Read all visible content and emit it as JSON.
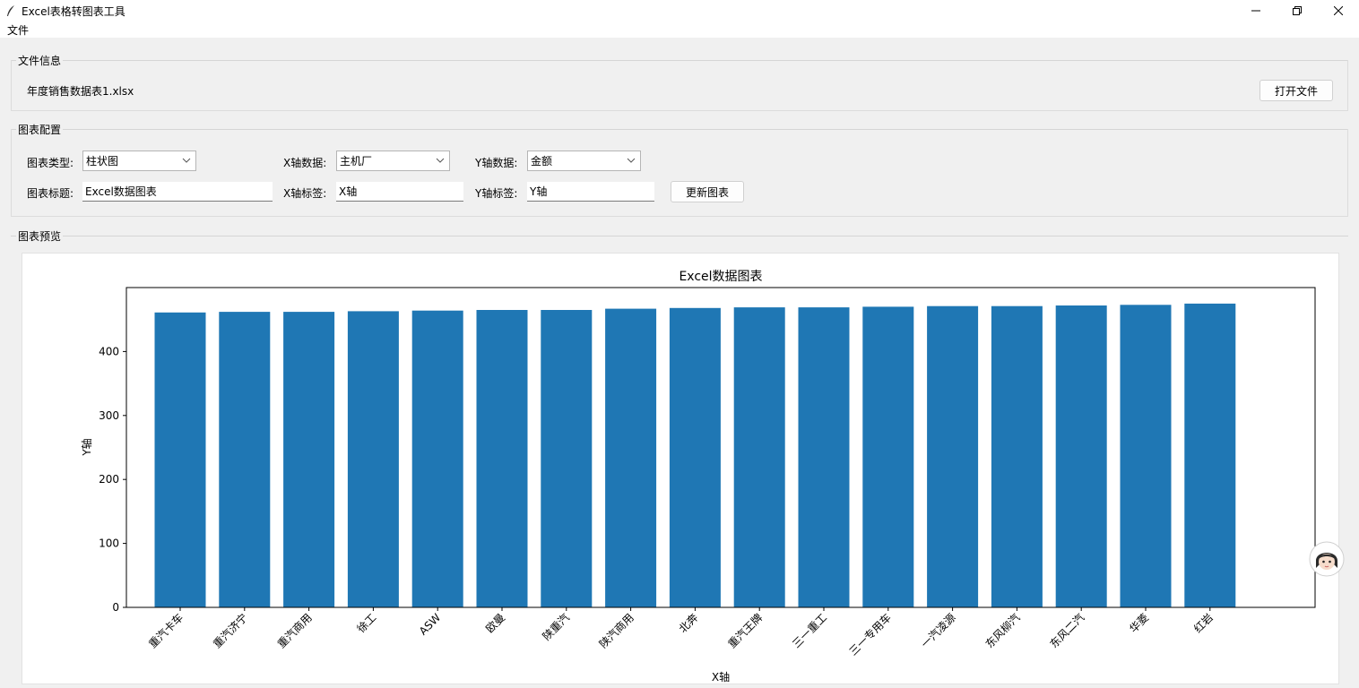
{
  "window": {
    "title": "Excel表格转图表工具"
  },
  "menu": {
    "file": "文件"
  },
  "file_info": {
    "section_label": "文件信息",
    "filename": "年度销售数据表1.xlsx",
    "open_button": "打开文件"
  },
  "config": {
    "section_label": "图表配置",
    "chart_type_label": "图表类型:",
    "chart_type_value": "柱状图",
    "x_data_label": "X轴数据:",
    "x_data_value": "主机厂",
    "y_data_label": "Y轴数据:",
    "y_data_value": "金额",
    "chart_title_label": "图表标题:",
    "chart_title_value": "Excel数据图表",
    "x_label_label": "X轴标签:",
    "x_label_value": "X轴",
    "y_label_label": "Y轴标签:",
    "y_label_value": "Y轴",
    "update_button": "更新图表"
  },
  "preview": {
    "section_label": "图表预览"
  },
  "chart_data": {
    "type": "bar",
    "title": "Excel数据图表",
    "xlabel": "X轴",
    "ylabel": "Y轴",
    "categories": [
      "重汽卡车",
      "重汽济宁",
      "重汽商用",
      "徐工",
      "ASW",
      "欧曼",
      "陕重汽",
      "陕汽商用",
      "北奔",
      "重汽王牌",
      "三一重工",
      "三一专用车",
      "一汽凌源",
      "东风柳汽",
      "东风二汽",
      "华菱",
      "红岩"
    ],
    "values": [
      461,
      462,
      462,
      463,
      464,
      465,
      465,
      467,
      468,
      469,
      469,
      470,
      471,
      471,
      472,
      473,
      475
    ],
    "ylim": [
      0,
      500
    ],
    "yticks": [
      0,
      100,
      200,
      300,
      400
    ],
    "color": "#1f77b4",
    "grid": false
  }
}
